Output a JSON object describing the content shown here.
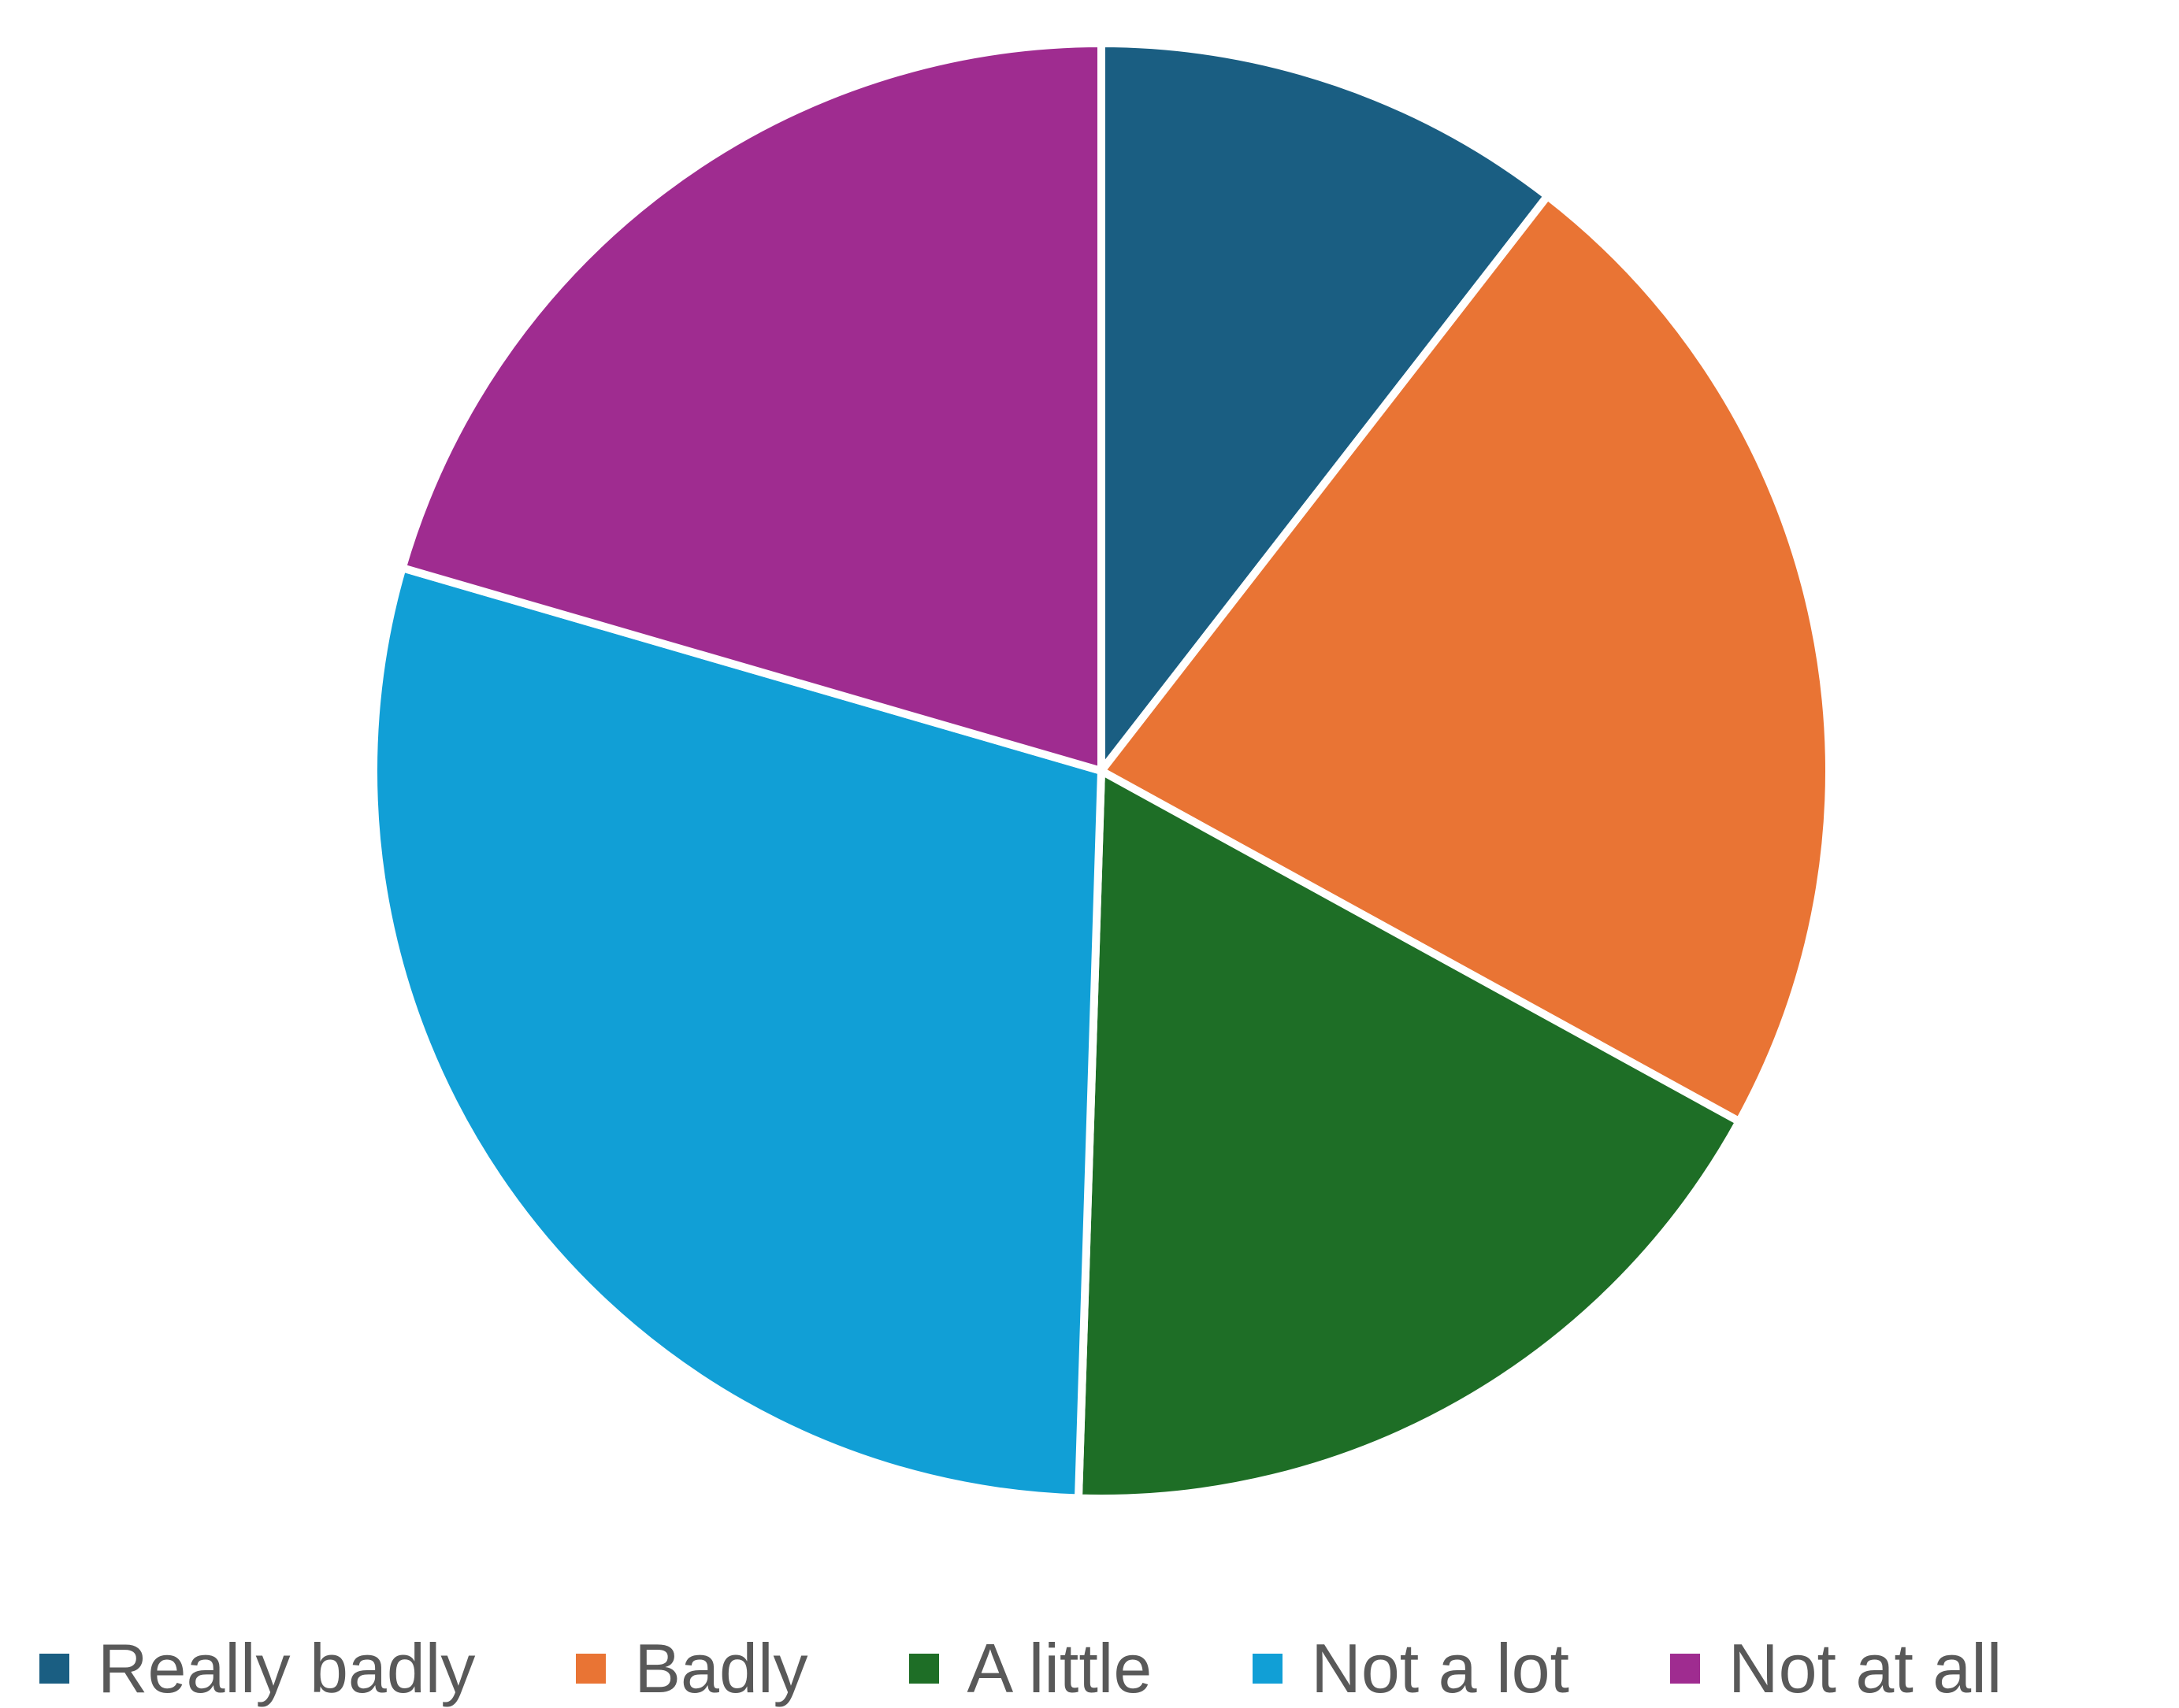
{
  "chart_data": {
    "type": "pie",
    "title": "",
    "start_angle_deg": 0,
    "direction": "clockwise",
    "legend_position": "bottom",
    "slice_border_color": "#ffffff",
    "categories": [
      "Really badly",
      "Badly",
      "A little",
      "Not a lot",
      "Not at all"
    ],
    "values": [
      10.5,
      22.5,
      17.5,
      29.0,
      20.5
    ],
    "colors": [
      "#1a5e82",
      "#e97434",
      "#1e6e26",
      "#119fd6",
      "#9f2c90"
    ]
  }
}
